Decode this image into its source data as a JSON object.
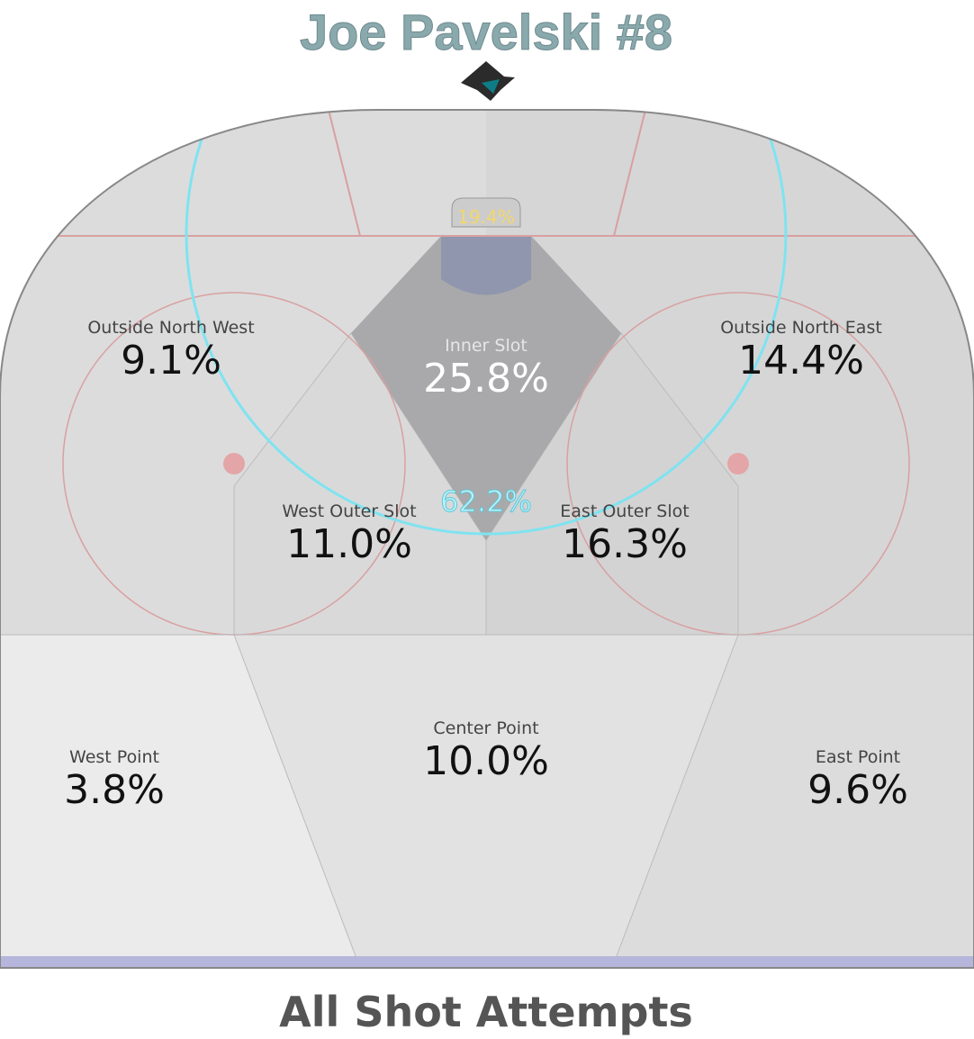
{
  "header": {
    "title": "Joe Pavelski #8"
  },
  "zones": [
    {
      "name": "Outside North West",
      "value": "9.1%"
    },
    {
      "name": "Inner Slot",
      "value": "25.8%"
    },
    {
      "name": "Outside North East",
      "value": "14.4%"
    },
    {
      "name": "West Outer Slot",
      "value": "11.0%"
    },
    {
      "name": "East Outer Slot",
      "value": "16.3%"
    },
    {
      "name": "West Point",
      "value": "3.8%"
    },
    {
      "name": "Center Point",
      "value": "10.0%"
    },
    {
      "name": "East Point",
      "value": "9.6%"
    }
  ],
  "crease_value": "19.4%",
  "home_plate_value": "62.2%",
  "footer": {
    "caption": "All Shot Attempts"
  }
}
